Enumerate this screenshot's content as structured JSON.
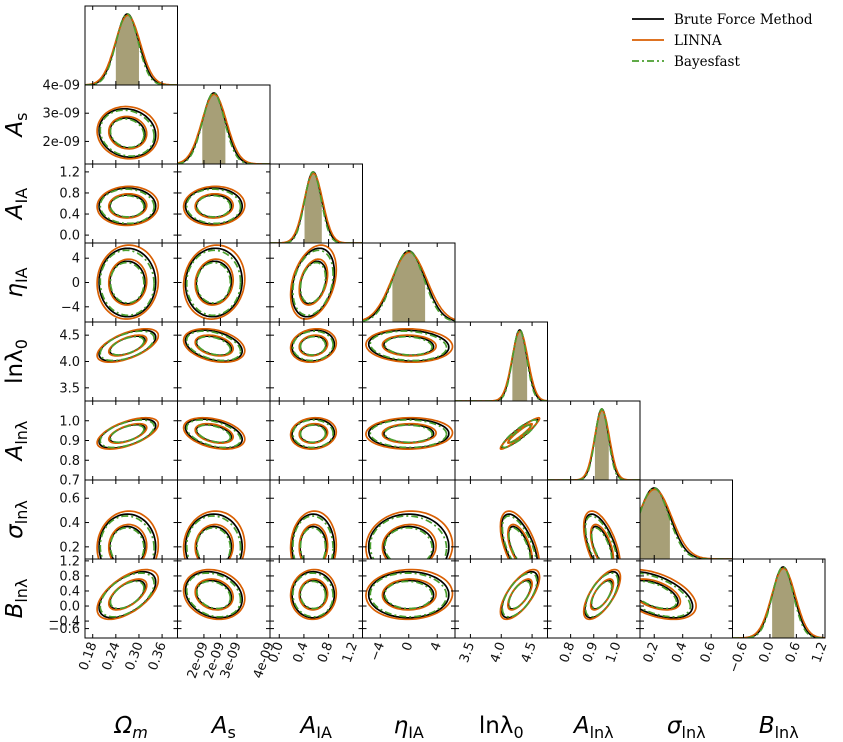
{
  "chart_data": {
    "type": "corner",
    "legend_position": "top-right",
    "series": [
      {
        "name": "Brute Force Method",
        "color": "#000000",
        "style": "solid"
      },
      {
        "name": "LINNA",
        "color": "#d95f02",
        "style": "solid"
      },
      {
        "name": "Bayesfast",
        "color": "#4a9f2f",
        "style": "dashdot"
      }
    ],
    "fill_color": "#8a7f4a",
    "parameters": [
      {
        "label": "Ωm",
        "sym": "Ω",
        "sub": "m",
        "range": [
          0.16,
          0.4
        ],
        "ticks": [
          0.18,
          0.24,
          0.3,
          0.36
        ],
        "tick_labels": [
          "0.18",
          "0.24",
          "0.30",
          "0.36"
        ],
        "mean": 0.27,
        "sigma": 0.03
      },
      {
        "label": "As",
        "sym": "A",
        "sub": "s",
        "range": [
          1.2e-09,
          4e-09
        ],
        "ticks": [
          2e-09,
          2.5e-09,
          3e-09,
          4e-09
        ],
        "tick_labels": [
          "2e-09",
          "2e-09",
          "3e-09",
          "4e-09"
        ],
        "ytick_values": [
          2e-09,
          3e-09,
          4e-09
        ],
        "ytick_labels": [
          "2e-09",
          "3e-09",
          "4e-09"
        ],
        "mean": 2.3e-09,
        "sigma": 3.5e-10
      },
      {
        "label": "AIA",
        "sym": "A",
        "sub": "IA",
        "range": [
          -0.15,
          1.35
        ],
        "ticks": [
          0.0,
          0.4,
          0.8,
          1.2
        ],
        "tick_labels": [
          "0.0",
          "0.4",
          "0.8",
          "1.2"
        ],
        "mean": 0.55,
        "sigma": 0.14
      },
      {
        "label": "ηIA",
        "sym": "η",
        "sub": "IA",
        "range": [
          -6.5,
          6.5
        ],
        "ticks": [
          -4,
          0,
          4
        ],
        "tick_labels": [
          "−4",
          "0",
          "4"
        ],
        "mean": 0.0,
        "sigma": 2.3
      },
      {
        "label": "lnλ0",
        "sym": "lnλ",
        "sub": "0",
        "range": [
          3.25,
          4.75
        ],
        "ticks": [
          3.5,
          4.0,
          4.5
        ],
        "tick_labels": [
          "3.5",
          "4.0",
          "4.5"
        ],
        "mean": 4.3,
        "sigma": 0.12
      },
      {
        "label": "Alnλ",
        "sym": "A",
        "sub": "lnλ",
        "range": [
          0.7,
          1.1
        ],
        "ticks": [
          0.8,
          0.9,
          1.0
        ],
        "tick_labels": [
          "0.8",
          "0.9",
          "1.0"
        ],
        "ytick_values": [
          0.7,
          0.8,
          0.9,
          1.0
        ],
        "ytick_labels": [
          "0.7",
          "0.8",
          "0.9",
          "1.0"
        ],
        "mean": 0.935,
        "sigma": 0.03
      },
      {
        "label": "σlnλ",
        "sym": "σ",
        "sub": "lnλ",
        "range": [
          0.1,
          0.75
        ],
        "ticks": [
          0.2,
          0.4,
          0.6
        ],
        "tick_labels": [
          "0.2",
          "0.4",
          "0.6"
        ],
        "mean": 0.2,
        "sigma": 0.11
      },
      {
        "label": "Blnλ",
        "sym": "B",
        "sub": "lnλ",
        "range": [
          -0.85,
          1.25
        ],
        "ticks": [
          -0.6,
          0.0,
          0.6,
          1.2
        ],
        "tick_labels": [
          "−0.6",
          "0.0",
          "0.6",
          "1.2"
        ],
        "ytick_values": [
          -0.6,
          -0.4,
          0.0,
          0.4,
          0.8,
          1.2
        ],
        "ytick_labels": [
          "−0.6",
          "−0.4",
          "0.0",
          "0.4",
          "0.8",
          "1.2"
        ],
        "mean": 0.3,
        "sigma": 0.25
      }
    ],
    "ytick_defaults_note": "",
    "correlations": [
      {
        "i": 1,
        "j": 0,
        "rho": -0.1
      },
      {
        "i": 2,
        "j": 0,
        "rho": 0.0
      },
      {
        "i": 2,
        "j": 1,
        "rho": 0.0
      },
      {
        "i": 3,
        "j": 0,
        "rho": 0.0
      },
      {
        "i": 3,
        "j": 1,
        "rho": 0.05
      },
      {
        "i": 3,
        "j": 2,
        "rho": 0.3
      },
      {
        "i": 4,
        "j": 0,
        "rho": 0.55
      },
      {
        "i": 4,
        "j": 1,
        "rho": -0.35
      },
      {
        "i": 4,
        "j": 2,
        "rho": 0.1
      },
      {
        "i": 4,
        "j": 3,
        "rho": -0.1
      },
      {
        "i": 5,
        "j": 0,
        "rho": 0.55
      },
      {
        "i": 5,
        "j": 1,
        "rho": -0.4
      },
      {
        "i": 5,
        "j": 2,
        "rho": 0.05
      },
      {
        "i": 5,
        "j": 3,
        "rho": 0.0
      },
      {
        "i": 5,
        "j": 4,
        "rho": 0.92
      },
      {
        "i": 6,
        "j": 0,
        "rho": 0.0
      },
      {
        "i": 6,
        "j": 1,
        "rho": 0.0
      },
      {
        "i": 6,
        "j": 2,
        "rho": 0.0
      },
      {
        "i": 6,
        "j": 3,
        "rho": 0.0
      },
      {
        "i": 6,
        "j": 4,
        "rho": -0.6
      },
      {
        "i": 6,
        "j": 5,
        "rho": -0.6
      },
      {
        "i": 7,
        "j": 0,
        "rho": 0.55
      },
      {
        "i": 7,
        "j": 1,
        "rho": -0.2
      },
      {
        "i": 7,
        "j": 2,
        "rho": 0.0
      },
      {
        "i": 7,
        "j": 3,
        "rho": 0.0
      },
      {
        "i": 7,
        "j": 4,
        "rho": 0.65
      },
      {
        "i": 7,
        "j": 5,
        "rho": 0.65
      },
      {
        "i": 7,
        "j": 6,
        "rho": -0.5
      }
    ],
    "credible_levels": [
      0.68,
      0.95
    ]
  }
}
